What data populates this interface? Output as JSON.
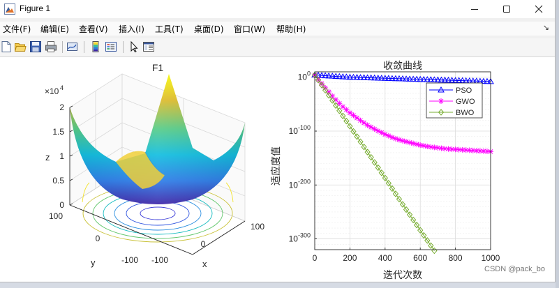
{
  "window": {
    "title": "Figure 1",
    "icon": "matlab-figure-icon",
    "controls": [
      "minimize-icon",
      "maximize-icon",
      "close-icon"
    ]
  },
  "menubar": {
    "items": [
      "文件(F)",
      "编辑(E)",
      "查看(V)",
      "插入(I)",
      "工具(T)",
      "桌面(D)",
      "窗口(W)",
      "帮助(H)"
    ],
    "dock_glyph": "↘"
  },
  "toolbar": {
    "buttons": [
      "new-figure-icon",
      "open-file-icon",
      "save-icon",
      "print-icon",
      "link-plot-icon",
      "colorbar-icon",
      "legend-icon",
      "pointer-icon",
      "property-editor-icon"
    ]
  },
  "plot_left": {
    "title": "F1",
    "xlabel": "x",
    "ylabel": "y",
    "zlabel": "z",
    "z_exponent_label": "×10",
    "z_exponent_power": "4",
    "z_ticks": [
      "0",
      "0.5",
      "1",
      "1.5",
      "2"
    ],
    "x_ticks": [
      "-100",
      "0",
      "100"
    ],
    "y_ticks": [
      "-100",
      "0",
      "100"
    ],
    "surface_colormap": [
      "#3e26a8",
      "#2e7de8",
      "#12bee0",
      "#57cc88",
      "#dfbc2c",
      "#f9fb0e"
    ],
    "contour_colors": [
      "#3e3fd8",
      "#2a8ee0",
      "#18bcc0",
      "#66c870",
      "#c9c238",
      "#f2e22c"
    ]
  },
  "chart_data": {
    "type": "line",
    "title": "收敛曲线",
    "xlabel": "迭代次数",
    "ylabel": "适应度值",
    "xlim": [
      0,
      1000
    ],
    "x_ticks": [
      0,
      200,
      400,
      600,
      800,
      1000
    ],
    "y_scale": "log",
    "ylim_exponents": [
      -320,
      10
    ],
    "y_tick_exponents": [
      0,
      -100,
      -200,
      -300
    ],
    "y_tick_base": "10",
    "grid": true,
    "legend": "top-right",
    "series": [
      {
        "name": "PSO",
        "color": "#0000ff",
        "marker": "triangle",
        "x": [
          0,
          50,
          100,
          200,
          300,
          400,
          500,
          600,
          700,
          800,
          900,
          1000
        ],
        "log10_y": [
          4,
          3,
          2,
          0,
          -1,
          -2,
          -3,
          -4,
          -5,
          -6,
          -7,
          -8
        ]
      },
      {
        "name": "GWO",
        "color": "#ff00ff",
        "marker": "star",
        "x": [
          0,
          50,
          100,
          150,
          200,
          250,
          300,
          350,
          400,
          450,
          500,
          550,
          600,
          650,
          700,
          750,
          800,
          850,
          900,
          950,
          1000
        ],
        "log10_y": [
          4,
          -16,
          -35,
          -52,
          -66,
          -78,
          -89,
          -98,
          -106,
          -113,
          -118,
          -122,
          -126,
          -129,
          -131,
          -133,
          -134,
          -135,
          -136,
          -137,
          -138
        ]
      },
      {
        "name": "BWO",
        "color": "#77ac30",
        "marker": "diamond",
        "x": [
          0,
          100,
          200,
          300,
          400,
          500,
          600,
          680
        ],
        "log10_y": [
          4,
          -43,
          -91,
          -139,
          -187,
          -236,
          -284,
          -322
        ]
      }
    ]
  },
  "watermark": "CSDN @pack_bo"
}
